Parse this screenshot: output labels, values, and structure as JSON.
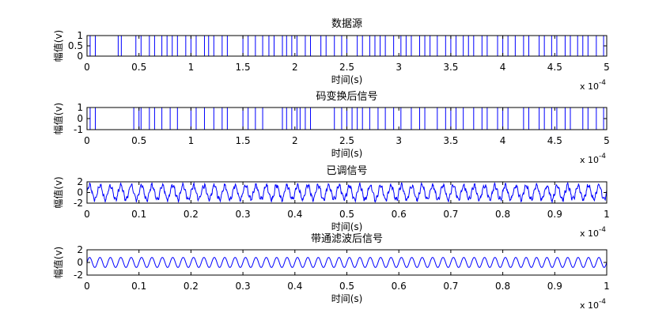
{
  "chart_data": [
    {
      "type": "line",
      "title": "数据源",
      "xlabel": "时间(s)",
      "ylabel": "幅值(v)",
      "x_exponent": "x 10",
      "x_exponent_power": "-4",
      "xlim": [
        0,
        5
      ],
      "ylim": [
        0,
        1
      ],
      "xticks": [
        0,
        0.5,
        1,
        1.5,
        2,
        2.5,
        3,
        3.5,
        4,
        4.5,
        5
      ],
      "xtick_labels": [
        "0",
        "0.5",
        "1",
        "1.5",
        "2",
        "2.5",
        "3",
        "3.5",
        "4",
        "4.5",
        "5"
      ],
      "yticks": [
        0,
        0.5,
        1
      ],
      "ytick_labels": [
        "0",
        "0.5",
        "1"
      ],
      "signal": "binary",
      "low": 0,
      "high": 1,
      "transitions": [
        0.03,
        0.08,
        0.3,
        0.33,
        0.47,
        0.52,
        0.6,
        0.65,
        0.72,
        0.77,
        0.82,
        0.87,
        0.95,
        1.0,
        1.05,
        1.13,
        1.17,
        1.22,
        1.3,
        1.35,
        1.5,
        1.55,
        1.62,
        1.69,
        1.75,
        1.8,
        1.88,
        1.92,
        1.97,
        2.02,
        2.1,
        2.15,
        2.25,
        2.3,
        2.38,
        2.45,
        2.5,
        2.6,
        2.65,
        2.72,
        2.77,
        2.82,
        2.87,
        2.95,
        3.02,
        3.07,
        3.12,
        3.2,
        3.25,
        3.3,
        3.37,
        3.45,
        3.5,
        3.55,
        3.62,
        3.67,
        3.72,
        3.8,
        3.85,
        3.95,
        4.0,
        4.05,
        4.12,
        4.2,
        4.25,
        4.35,
        4.4,
        4.47,
        4.52,
        4.6,
        4.65,
        4.72,
        4.77,
        4.82,
        4.9,
        4.97
      ],
      "start_level": 1
    },
    {
      "type": "line",
      "title": "码变换后信号",
      "xlabel": "时间(s)",
      "ylabel": "幅值(v)",
      "x_exponent": "x 10",
      "x_exponent_power": "-4",
      "xlim": [
        0,
        5
      ],
      "ylim": [
        -1,
        1
      ],
      "xticks": [
        0,
        0.5,
        1,
        1.5,
        2,
        2.5,
        3,
        3.5,
        4,
        4.5,
        5
      ],
      "xtick_labels": [
        "0",
        "0.5",
        "1",
        "1.5",
        "2",
        "2.5",
        "3",
        "3.5",
        "4",
        "4.5",
        "5"
      ],
      "yticks": [
        -1,
        0,
        1
      ],
      "ytick_labels": [
        "-1",
        "0",
        "1"
      ],
      "signal": "binary",
      "low": -1,
      "high": 1,
      "transitions": [
        0.03,
        0.08,
        0.45,
        0.5,
        0.52,
        0.6,
        0.65,
        0.72,
        0.8,
        0.87,
        1.0,
        1.05,
        1.13,
        1.22,
        1.3,
        1.35,
        1.5,
        1.55,
        1.62,
        1.69,
        1.88,
        1.92,
        1.97,
        2.02,
        2.05,
        2.1,
        2.15,
        2.38,
        2.45,
        2.5,
        2.55,
        2.6,
        2.65,
        2.72,
        2.8,
        2.87,
        2.95,
        3.02,
        3.12,
        3.2,
        3.25,
        3.37,
        3.45,
        3.5,
        3.55,
        3.62,
        3.72,
        3.8,
        3.85,
        3.95,
        4.0,
        4.05,
        4.2,
        4.25,
        4.35,
        4.4,
        4.47,
        4.52,
        4.6,
        4.65,
        4.77,
        4.82,
        4.9,
        4.97
      ],
      "start_level": 1
    },
    {
      "type": "line",
      "title": "已调信号",
      "xlabel": "时间(s)",
      "ylabel": "幅值(v)",
      "x_exponent": "x 10",
      "x_exponent_power": "-4",
      "xlim": [
        0,
        1
      ],
      "ylim": [
        -2,
        2
      ],
      "xticks": [
        0,
        0.1,
        0.2,
        0.3,
        0.4,
        0.5,
        0.6,
        0.7,
        0.8,
        0.9,
        1
      ],
      "xtick_labels": [
        "0",
        "0.1",
        "0.2",
        "0.3",
        "0.4",
        "0.5",
        "0.6",
        "0.7",
        "0.8",
        "0.9",
        "1"
      ],
      "yticks": [
        -2,
        0,
        2
      ],
      "ytick_labels": [
        "-2",
        "0",
        "2"
      ],
      "signal": "noisy_sine",
      "amplitude": 1.3,
      "cycles": 50,
      "noise": 0.55
    },
    {
      "type": "line",
      "title": "带通滤波后信号",
      "xlabel": "时间(s)",
      "ylabel": "幅值(v)",
      "x_exponent": "x 10",
      "x_exponent_power": "-4",
      "xlim": [
        0,
        1
      ],
      "ylim": [
        -2,
        2
      ],
      "xticks": [
        0,
        0.1,
        0.2,
        0.3,
        0.4,
        0.5,
        0.6,
        0.7,
        0.8,
        0.9,
        1
      ],
      "xtick_labels": [
        "0",
        "0.1",
        "0.2",
        "0.3",
        "0.4",
        "0.5",
        "0.6",
        "0.7",
        "0.8",
        "0.9",
        "1"
      ],
      "yticks": [
        -2,
        0,
        2
      ],
      "ytick_labels": [
        "-2",
        "0",
        "2"
      ],
      "signal": "sine",
      "amplitude": 0.8,
      "cycles": 50
    }
  ],
  "colors": {
    "line": "#0000ff",
    "axes": "#000000",
    "background": "#ffffff"
  }
}
